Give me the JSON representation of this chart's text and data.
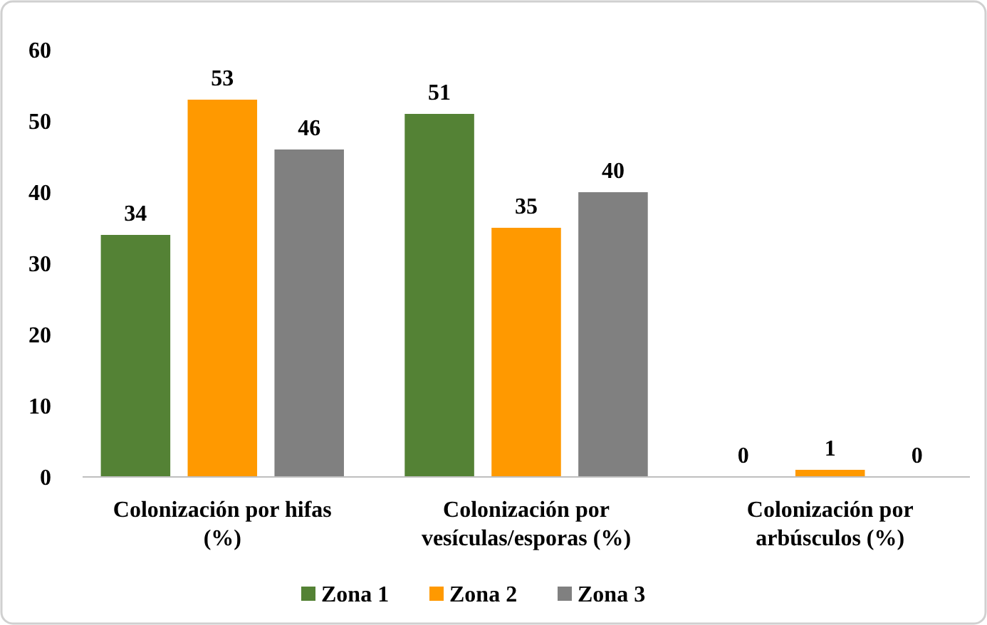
{
  "chart_data": {
    "type": "bar",
    "categories": [
      "Colonización por hifas (%)",
      "Colonización por vesículas/esporas (%)",
      "Colonización por arbúsculos (%)"
    ],
    "series": [
      {
        "name": "Zona 1",
        "color": "#548235",
        "values": [
          34,
          51,
          0
        ]
      },
      {
        "name": "Zona 2",
        "color": "#ff9900",
        "values": [
          53,
          35,
          1
        ]
      },
      {
        "name": "Zona 3",
        "color": "#808080",
        "values": [
          46,
          40,
          0
        ]
      }
    ],
    "ylim": [
      0,
      60
    ],
    "yticks": [
      0,
      10,
      20,
      30,
      40,
      50,
      60
    ],
    "data_labels": true,
    "legend": "bottom",
    "grid": false
  }
}
